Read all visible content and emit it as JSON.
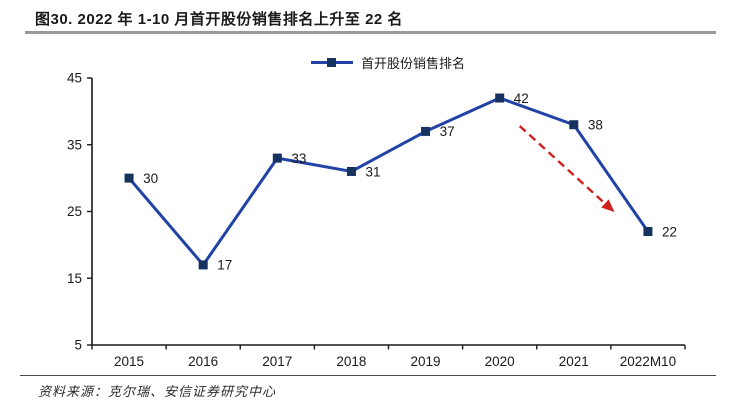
{
  "figure": {
    "title": "图30. 2022 年 1-10 月首开股份销售排名上升至 22 名"
  },
  "footer": {
    "source": "资料来源：克尔瑞、安信证券研究中心"
  },
  "chart_data": {
    "type": "line",
    "title": "图30. 2022 年 1-10 月首开股份销售排名上升至 22 名",
    "categories": [
      "2015",
      "2016",
      "2017",
      "2018",
      "2019",
      "2020",
      "2021",
      "2022M10"
    ],
    "series": [
      {
        "name": "首开股份销售排名",
        "values": [
          30,
          17,
          33,
          31,
          37,
          42,
          38,
          22
        ]
      }
    ],
    "ylim": [
      5,
      45
    ],
    "yticks": [
      45,
      35,
      25,
      15,
      5
    ],
    "xlabel": "",
    "ylabel": "",
    "grid": false,
    "legend_position": "top-center",
    "marker": "square",
    "colors": {
      "line": "#2143a5",
      "marker": "#16325f",
      "arrow": "#cf1f1f",
      "axis": "#1a1a1a"
    },
    "annotation": {
      "type": "dashed-arrow",
      "from": {
        "x_index": 5.27,
        "value": 37.8
      },
      "to": {
        "x_index": 6.55,
        "value": 24.9
      }
    }
  }
}
